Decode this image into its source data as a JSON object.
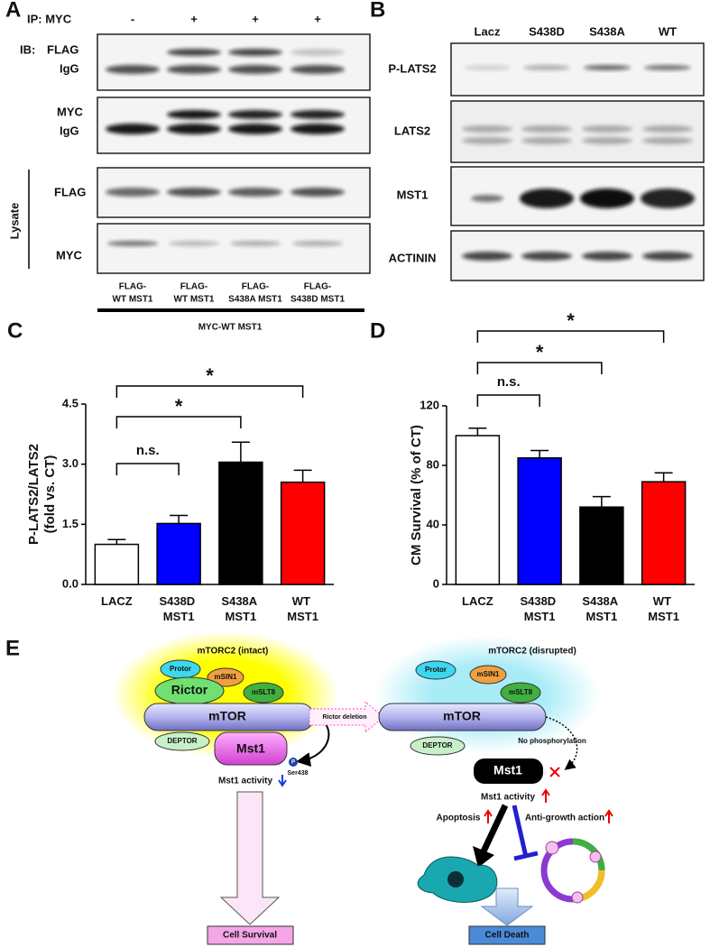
{
  "panel_a": {
    "label": "A",
    "ip_label": "IP: MYC",
    "ip_signs": [
      "-",
      "+",
      "+",
      "+"
    ],
    "ib_label": "IB:",
    "blot_labels": [
      [
        "FLAG",
        "IgG"
      ],
      [
        "MYC",
        "IgG"
      ],
      [
        "FLAG"
      ],
      [
        "MYC"
      ]
    ],
    "lysate_label": "Lysate",
    "lanes": [
      [
        "FLAG-",
        "WT MST1"
      ],
      [
        "FLAG-",
        "WT MST1"
      ],
      [
        "FLAG-",
        "S438A MST1"
      ],
      [
        "FLAG-",
        "S438D MST1"
      ]
    ],
    "bottom_label": "MYC-WT MST1"
  },
  "panel_b": {
    "label": "B",
    "lanes": [
      "Lacz",
      "S438D",
      "S438A",
      "WT"
    ],
    "blot_labels": [
      "P-LATS2",
      "LATS2",
      "MST1",
      "ACTININ"
    ]
  },
  "chart_data": [
    {
      "type": "bar",
      "panel": "C",
      "y_label": [
        "P-LATS2/LATS2",
        "(fold vs. CT)"
      ],
      "categories": [
        "LACZ",
        "S438D MST1",
        "S438A MST1",
        "WT MST1"
      ],
      "values": [
        1.0,
        1.52,
        3.05,
        2.55
      ],
      "errors": [
        0.12,
        0.2,
        0.5,
        0.3
      ],
      "colors": [
        "#ffffff",
        "#0000ff",
        "#000000",
        "#ff0000"
      ],
      "edgecolor": "#000000",
      "ylim": [
        0,
        4.5
      ],
      "yticks": [
        {
          "value": 0,
          "label": "0.0"
        },
        1.5,
        {
          "value": 3,
          "label": "3.0"
        },
        4.5
      ],
      "annotations": [
        {
          "between": [
            "LACZ",
            "S438D MST1"
          ],
          "label": "n.s."
        },
        {
          "between": [
            "LACZ",
            "S438A MST1"
          ],
          "label": "*"
        },
        {
          "between": [
            "LACZ",
            "WT MST1"
          ],
          "label": "*"
        }
      ]
    },
    {
      "type": "bar",
      "panel": "D",
      "y_label": [
        "CM Survival (% of CT)"
      ],
      "categories": [
        "LACZ",
        "S438D MST1",
        "S438A MST1",
        "WT MST1"
      ],
      "values": [
        100,
        85,
        52,
        69
      ],
      "errors": [
        5,
        5,
        7,
        6
      ],
      "colors": [
        "#ffffff",
        "#0000ff",
        "#000000",
        "#ff0000"
      ],
      "edgecolor": "#000000",
      "ylim": [
        0,
        120
      ],
      "yticks": [
        0,
        40,
        80,
        120
      ],
      "annotations": [
        {
          "between": [
            "LACZ",
            "S438D MST1"
          ],
          "label": "n.s."
        },
        {
          "between": [
            "LACZ",
            "S438A MST1"
          ],
          "label": "*"
        },
        {
          "between": [
            "LACZ",
            "WT MST1"
          ],
          "label": "*"
        }
      ]
    }
  ],
  "panel_e": {
    "label": "E",
    "intact": {
      "title": "mTORC2 (intact)",
      "protor": "Protor",
      "msin1": "mSIN1",
      "rictor": "Rictor",
      "mslt8": "mSLT8",
      "mtor": "mTOR",
      "deptor": "DEPTOR",
      "mst1": "Mst1",
      "phospho": "P",
      "site": "Ser438",
      "activity": "Mst1 activity",
      "outcome": "Cell Survival"
    },
    "transition": "Rictor deletion",
    "disrupted": {
      "title": "mTORC2 (disrupted)",
      "protor": "Protor",
      "msin1": "mSIN1",
      "mslt8": "mSLT8",
      "mtor": "mTOR",
      "deptor": "DEPTOR",
      "note": "No phosphorylation",
      "mst1": "Mst1",
      "activity": "Mst1 activity",
      "apoptosis": "Apoptosis",
      "anti_growth": "Anti-growth action",
      "outcome": "Cell Death"
    }
  }
}
